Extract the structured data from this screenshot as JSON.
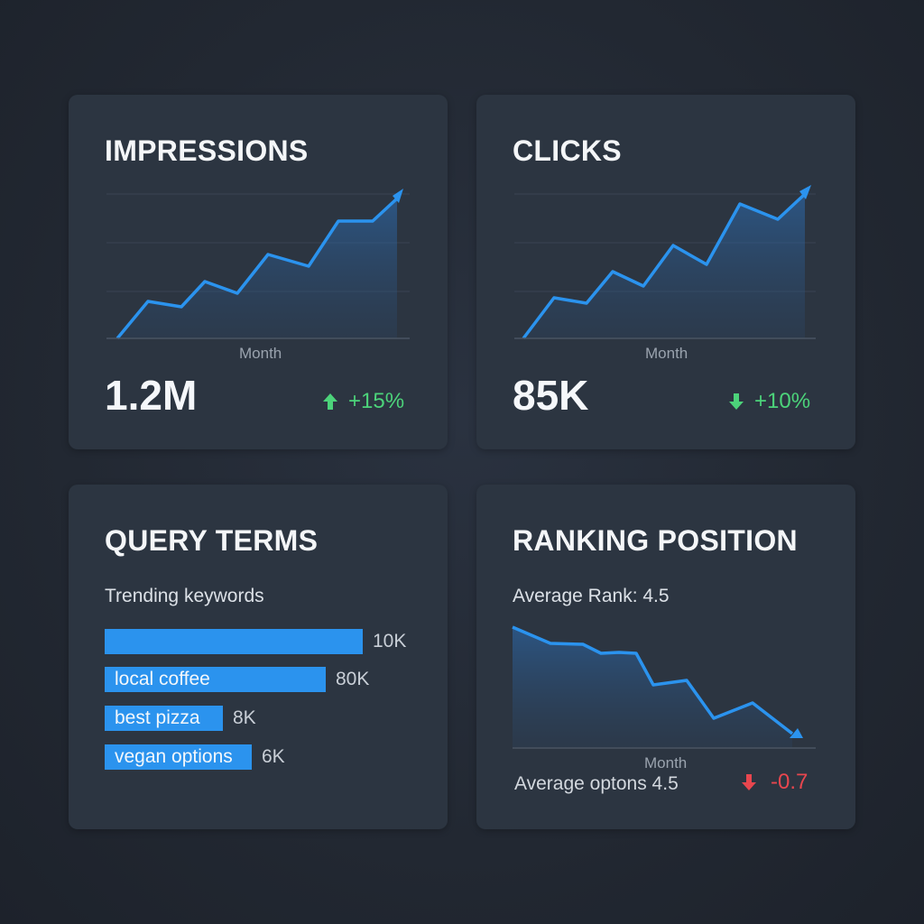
{
  "cards": {
    "impressions": {
      "title": "IMPRESSIONS",
      "axis_label": "Month",
      "value": "1.2M",
      "delta": "+15%",
      "trend": "up",
      "color": "#4cd37a"
    },
    "clicks": {
      "title": "CLICKS",
      "axis_label": "Month",
      "value": "85K",
      "delta": "+10%",
      "trend": "down-arrow",
      "color": "#4cd37a"
    },
    "query": {
      "title": "QUERY TERMS",
      "subtitle": "Trending keywords",
      "keywords": [
        {
          "label": "",
          "value": "10K"
        },
        {
          "label": "local coffee",
          "value": "80K"
        },
        {
          "label": "best pizza",
          "value": "8K"
        },
        {
          "label": "vegan options",
          "value": "6K"
        }
      ]
    },
    "ranking": {
      "title": "RANKING POSITION",
      "subtitle": "Average Rank: 4.5",
      "axis_label": "Month",
      "footer": "Average optons 4.5",
      "delta": "-0.7",
      "trend": "down",
      "color": "#e8464e"
    }
  },
  "accent_color": "#2b93ee",
  "icons": [
    "arrow-up-icon",
    "arrow-down-icon"
  ]
}
